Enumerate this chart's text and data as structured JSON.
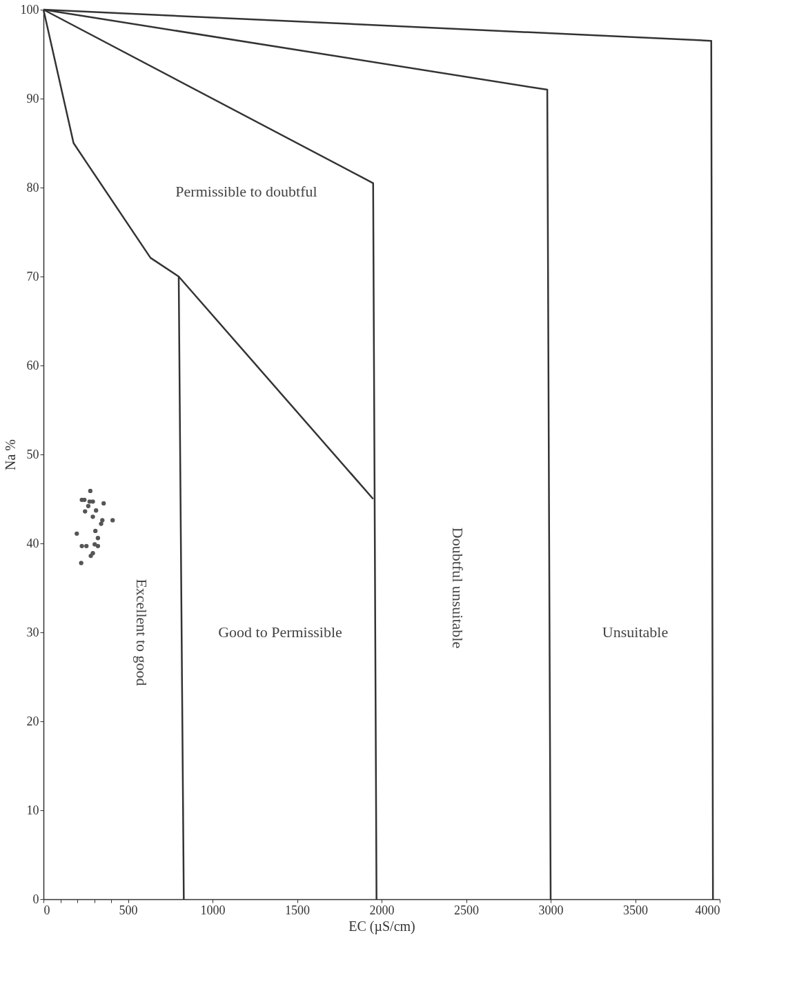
{
  "chart_data": {
    "type": "scatter",
    "xlabel": "EC (µS/cm)",
    "ylabel": "Na %",
    "xlim": [
      0,
      4000
    ],
    "xticks": [
      0,
      {
        "value": 100,
        "label": null
      },
      {
        "value": 200,
        "label": null
      },
      {
        "value": 300,
        "label": null
      },
      {
        "value": 400,
        "label": null
      },
      500,
      1000,
      1500,
      2000,
      2500,
      3000,
      3500,
      4000
    ],
    "ylim": [
      0,
      100
    ],
    "yticks": [
      0,
      10,
      20,
      30,
      40,
      50,
      60,
      70,
      80,
      90,
      100
    ],
    "grid": false,
    "annotations": [
      "Permissible to doubtful",
      "Excellent to good",
      "Good to Permissible",
      "Doubtful unsuitable",
      "Unsuitable"
    ],
    "series": [
      {
        "marker": "circle",
        "color": "#555555",
        "x": [
          277,
          227,
          242,
          273,
          292,
          265,
          356,
          246,
          311,
          292,
          348,
          409,
          341,
          197,
          307,
          322,
          227,
          254,
          303,
          322,
          292,
          280,
          223
        ],
        "values": [
          45.9,
          44.9,
          44.9,
          44.7,
          44.7,
          44.2,
          44.5,
          43.6,
          43.7,
          43.0,
          42.6,
          42.6,
          42.2,
          41.1,
          41.4,
          40.6,
          39.7,
          39.7,
          39.9,
          39.7,
          38.9,
          38.6,
          37.8
        ]
      },
      {
        "type": "line",
        "color": "#333333",
        "line_style": "solid",
        "x": [
          0,
          178,
          273,
          633,
          800,
          830
        ],
        "values": [
          100,
          85,
          82.3,
          72.1,
          70,
          0
        ]
      },
      {
        "type": "line",
        "color": "#333333",
        "line_style": "solid",
        "x": [
          800,
          1950
        ],
        "values": [
          70,
          45
        ]
      },
      {
        "type": "line",
        "color": "#333333",
        "line_style": "solid",
        "x": [
          0,
          1950,
          1970
        ],
        "values": [
          100,
          80.5,
          0
        ]
      },
      {
        "type": "line",
        "color": "#333333",
        "line_style": "solid",
        "x": [
          0,
          2980,
          3000
        ],
        "values": [
          100,
          91,
          0
        ]
      },
      {
        "type": "line",
        "color": "#333333",
        "line_style": "solid",
        "x": [
          0,
          3950,
          3960
        ],
        "values": [
          100,
          96.5,
          0
        ]
      }
    ]
  }
}
